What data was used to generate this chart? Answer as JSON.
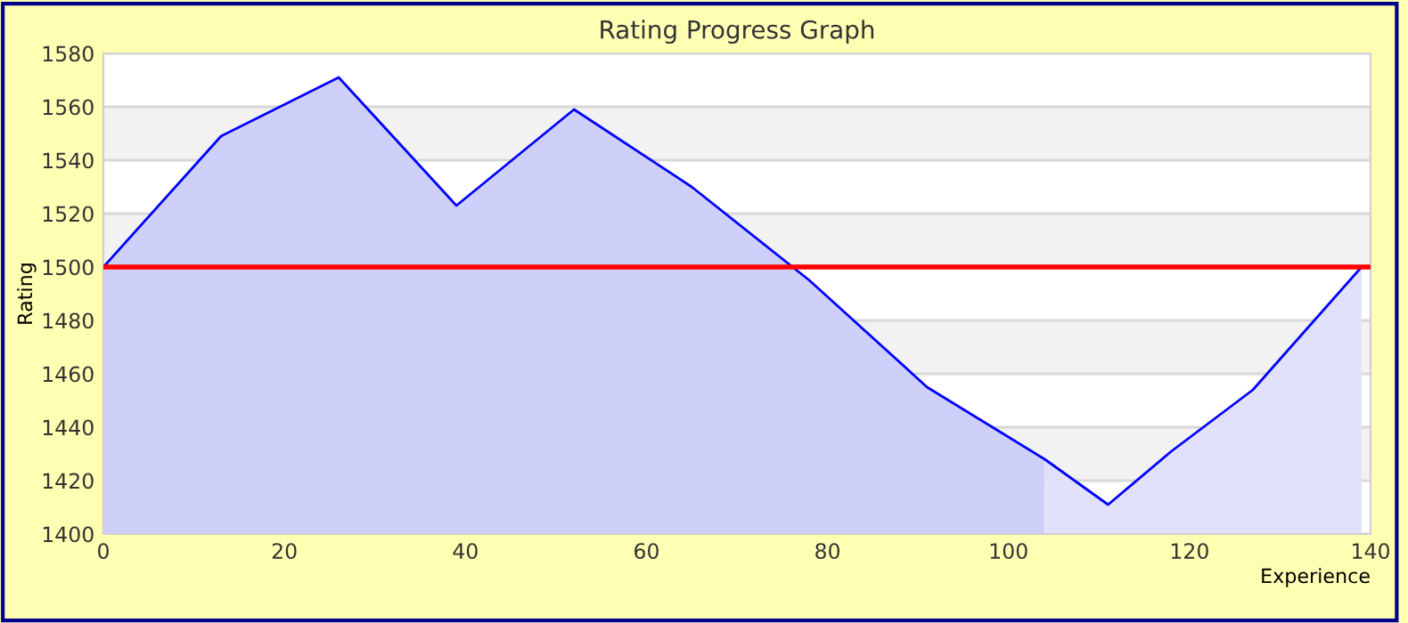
{
  "chart_data": {
    "type": "area",
    "title": "Rating Progress Graph",
    "xlabel": "Experience",
    "ylabel": "Rating",
    "series": [
      {
        "color": "#cfd0fa",
        "x": [
          0,
          13,
          26,
          39,
          52,
          65,
          78,
          91,
          104
        ],
        "values": [
          1500,
          1549,
          1571,
          1523,
          1559,
          1530,
          1495,
          1455,
          1428
        ]
      },
      {
        "color": "#e1e1fb",
        "x": [
          104,
          111,
          118,
          127,
          139
        ],
        "values": [
          1428,
          1411,
          1431,
          1454,
          1500
        ]
      },
      {
        "type": "line",
        "color": "#0000ff",
        "x": [
          0,
          13,
          26,
          39,
          52,
          65,
          78,
          91,
          104,
          111,
          118,
          127,
          139
        ],
        "values": [
          1500,
          1549,
          1571,
          1523,
          1559,
          1530,
          1495,
          1455,
          1428,
          1411,
          1431,
          1454,
          1500
        ]
      }
    ],
    "xlim": [
      0,
      140
    ],
    "xticks": [
      0,
      20,
      40,
      60,
      80,
      100,
      120,
      140
    ],
    "ylim": [
      1400,
      1580
    ],
    "yticks": [
      1400,
      1420,
      1440,
      1460,
      1480,
      1500,
      1520,
      1540,
      1560,
      1580
    ],
    "grid": "y",
    "ref_lines": [
      {
        "axis": "y",
        "value": 1500,
        "color": "#ff0000"
      }
    ],
    "bands": [
      {
        "axis": "y",
        "from": 1420,
        "to": 1440,
        "color": "#f2f2f2"
      },
      {
        "axis": "y",
        "from": 1460,
        "to": 1480,
        "color": "#f2f2f2"
      },
      {
        "axis": "y",
        "from": 1500,
        "to": 1520,
        "color": "#f2f2f2"
      },
      {
        "axis": "y",
        "from": 1540,
        "to": 1560,
        "color": "#f2f2f2"
      }
    ]
  }
}
